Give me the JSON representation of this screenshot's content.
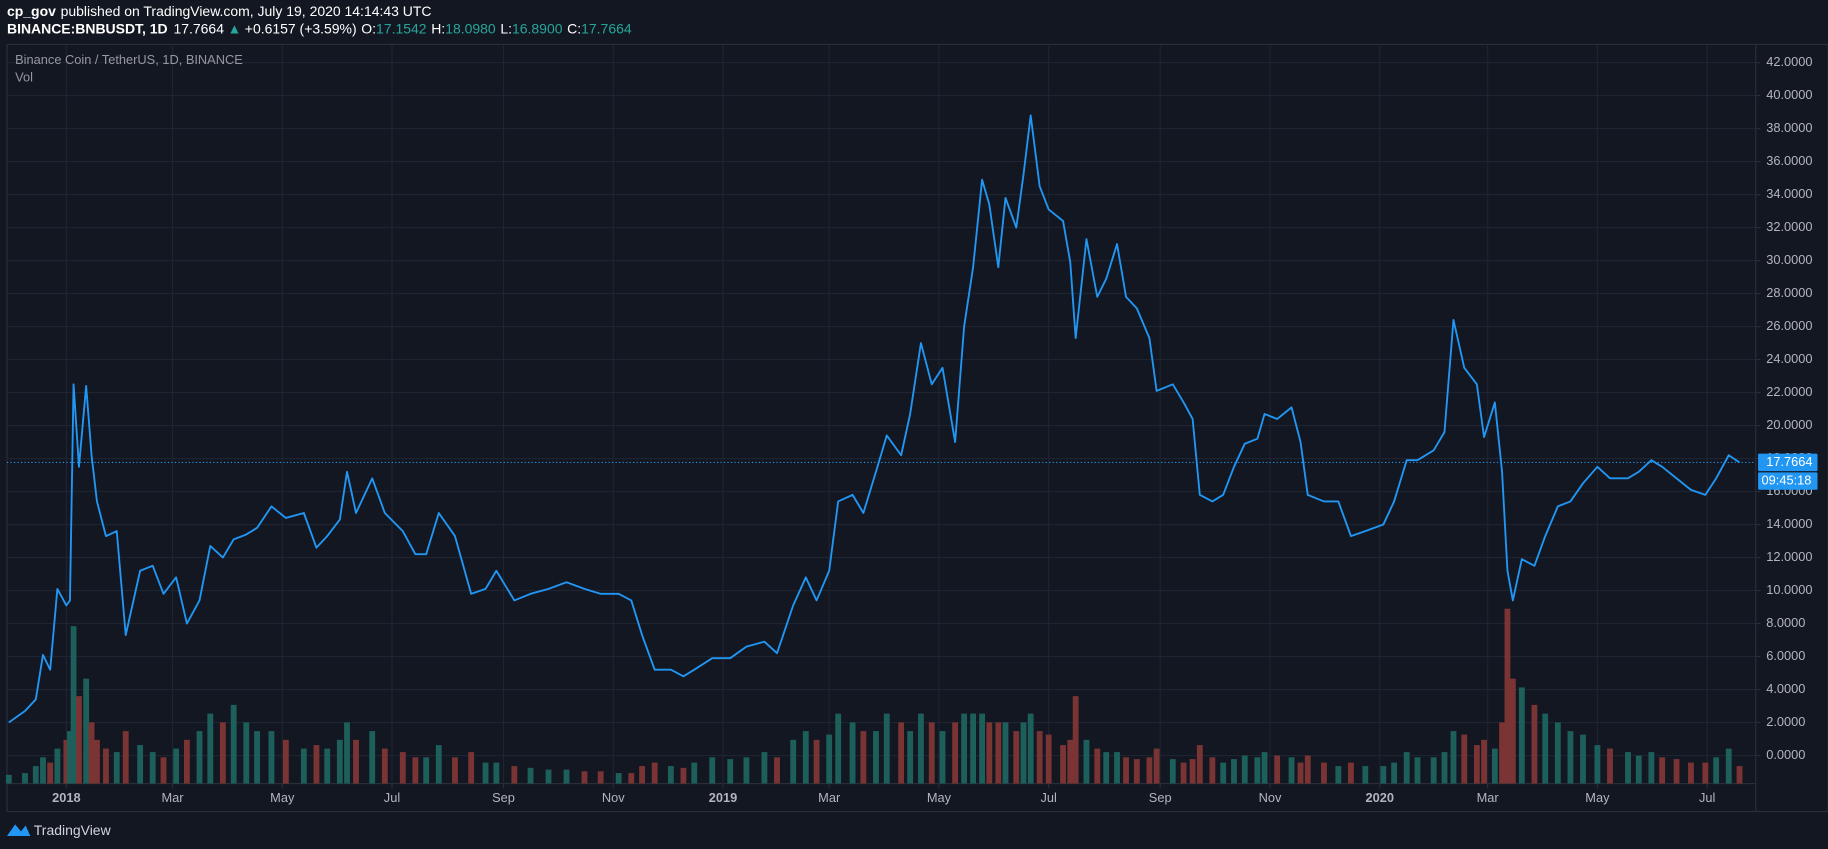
{
  "header": {
    "author": "cp_gov",
    "published": "published on TradingView.com, July 19, 2020 14:14:43 UTC",
    "symbol": "BINANCE:BNBUSDT, 1D",
    "last": "17.7664",
    "arrow": "▲",
    "change": "+0.6157 (+3.59%)",
    "open_label": "O:",
    "open": "17.1542",
    "high_label": "H:",
    "high": "18.0980",
    "low_label": "L:",
    "low": "16.8900",
    "close_label": "C:",
    "close": "17.7664"
  },
  "chart_data": {
    "type": "line",
    "background": "#131722",
    "grid": true,
    "grid_color": "#1f2431",
    "x": [
      "2017-11-30",
      "2017-12-09",
      "2017-12-15",
      "2017-12-19",
      "2017-12-23",
      "2017-12-27",
      "2018-01-01",
      "2018-01-03",
      "2018-01-05",
      "2018-01-08",
      "2018-01-12",
      "2018-01-15",
      "2018-01-18",
      "2018-01-23",
      "2018-01-29",
      "2018-02-03",
      "2018-02-11",
      "2018-02-18",
      "2018-02-24",
      "2018-03-03",
      "2018-03-09",
      "2018-03-16",
      "2018-03-22",
      "2018-03-29",
      "2018-04-04",
      "2018-04-11",
      "2018-04-17",
      "2018-04-25",
      "2018-05-03",
      "2018-05-13",
      "2018-05-20",
      "2018-05-26",
      "2018-06-02",
      "2018-06-06",
      "2018-06-11",
      "2018-06-20",
      "2018-06-27",
      "2018-07-07",
      "2018-07-14",
      "2018-07-20",
      "2018-07-27",
      "2018-08-05",
      "2018-08-14",
      "2018-08-22",
      "2018-08-28",
      "2018-09-07",
      "2018-09-16",
      "2018-09-26",
      "2018-10-06",
      "2018-10-16",
      "2018-10-25",
      "2018-11-04",
      "2018-11-11",
      "2018-11-17",
      "2018-11-24",
      "2018-12-03",
      "2018-12-10",
      "2018-12-16",
      "2018-12-26",
      "2019-01-05",
      "2019-01-14",
      "2019-01-24",
      "2019-01-31",
      "2019-02-09",
      "2019-02-16",
      "2019-02-22",
      "2019-03-01",
      "2019-03-06",
      "2019-03-14",
      "2019-03-20",
      "2019-03-27",
      "2019-04-02",
      "2019-04-10",
      "2019-04-15",
      "2019-04-21",
      "2019-04-27",
      "2019-05-03",
      "2019-05-10",
      "2019-05-15",
      "2019-05-20",
      "2019-05-25",
      "2019-05-29",
      "2019-06-03",
      "2019-06-07",
      "2019-06-13",
      "2019-06-17",
      "2019-06-21",
      "2019-06-26",
      "2019-07-01",
      "2019-07-09",
      "2019-07-13",
      "2019-07-16",
      "2019-07-22",
      "2019-07-28",
      "2019-08-02",
      "2019-08-08",
      "2019-08-13",
      "2019-08-19",
      "2019-08-26",
      "2019-08-30",
      "2019-09-08",
      "2019-09-14",
      "2019-09-19",
      "2019-09-23",
      "2019-09-30",
      "2019-10-06",
      "2019-10-12",
      "2019-10-18",
      "2019-10-25",
      "2019-10-29",
      "2019-11-05",
      "2019-11-13",
      "2019-11-18",
      "2019-11-22",
      "2019-12-01",
      "2019-12-09",
      "2019-12-16",
      "2019-12-24",
      "2020-01-03",
      "2020-01-09",
      "2020-01-16",
      "2020-01-22",
      "2020-01-31",
      "2020-02-06",
      "2020-02-11",
      "2020-02-17",
      "2020-02-24",
      "2020-02-28",
      "2020-03-05",
      "2020-03-09",
      "2020-03-12",
      "2020-03-15",
      "2020-03-20",
      "2020-03-27",
      "2020-04-02",
      "2020-04-09",
      "2020-04-16",
      "2020-04-23",
      "2020-05-01",
      "2020-05-08",
      "2020-05-18",
      "2020-05-24",
      "2020-05-31",
      "2020-06-06",
      "2020-06-14",
      "2020-06-22",
      "2020-06-30",
      "2020-07-06",
      "2020-07-13",
      "2020-07-19"
    ],
    "series": [
      {
        "name": "Binance Coin / TetherUS, 1D, BINANCE",
        "color": "#2196f3",
        "values": [
          2.0,
          2.7,
          3.4,
          6.1,
          5.2,
          10.1,
          9.1,
          9.4,
          22.5,
          17.5,
          22.4,
          18.2,
          15.4,
          13.3,
          13.6,
          7.3,
          11.2,
          11.5,
          9.8,
          10.8,
          8.0,
          9.4,
          12.7,
          12.0,
          13.1,
          13.4,
          13.8,
          15.1,
          14.4,
          14.7,
          12.6,
          13.3,
          14.3,
          17.2,
          14.7,
          16.8,
          14.7,
          13.6,
          12.2,
          12.2,
          14.7,
          13.3,
          9.8,
          10.1,
          11.2,
          9.4,
          9.8,
          10.1,
          10.5,
          10.1,
          9.8,
          9.8,
          9.4,
          7.3,
          5.2,
          5.2,
          4.8,
          5.2,
          5.9,
          5.9,
          6.6,
          6.9,
          6.2,
          9.1,
          10.8,
          9.4,
          11.2,
          15.4,
          15.8,
          14.7,
          17.2,
          19.4,
          18.2,
          20.7,
          25.0,
          22.5,
          23.5,
          19.0,
          26.0,
          29.6,
          34.9,
          33.4,
          29.6,
          33.8,
          32.0,
          35.2,
          38.8,
          34.5,
          33.1,
          32.4,
          29.9,
          25.3,
          31.3,
          27.8,
          28.9,
          31.0,
          27.8,
          27.1,
          25.3,
          22.1,
          22.5,
          21.4,
          20.4,
          15.8,
          15.4,
          15.8,
          17.5,
          18.9,
          19.2,
          20.7,
          20.4,
          21.1,
          19.0,
          15.8,
          15.4,
          15.4,
          13.3,
          13.6,
          14.0,
          15.4,
          17.9,
          17.9,
          18.5,
          19.6,
          26.4,
          23.5,
          22.5,
          19.3,
          21.4,
          17.2,
          11.2,
          9.4,
          11.9,
          11.5,
          13.3,
          15.1,
          15.4,
          16.5,
          17.5,
          16.8,
          16.8,
          17.2,
          17.9,
          17.5,
          16.8,
          16.1,
          15.8,
          16.8,
          18.2,
          17.7664
        ]
      }
    ],
    "volume": {
      "name": "Vol",
      "vlim": [
        0,
        100
      ],
      "up_color": "#1d5f5b",
      "down_color": "#7a3434",
      "values": [
        5,
        6,
        10,
        15,
        12,
        20,
        25,
        30,
        90,
        50,
        60,
        35,
        25,
        20,
        18,
        30,
        22,
        18,
        15,
        20,
        25,
        30,
        40,
        35,
        45,
        35,
        30,
        30,
        25,
        20,
        22,
        20,
        25,
        35,
        25,
        30,
        20,
        18,
        15,
        15,
        22,
        15,
        18,
        12,
        12,
        10,
        9,
        8,
        8,
        7,
        7,
        6,
        6,
        10,
        12,
        10,
        9,
        12,
        15,
        14,
        15,
        18,
        15,
        25,
        30,
        25,
        28,
        40,
        35,
        30,
        30,
        40,
        35,
        30,
        40,
        35,
        30,
        35,
        40,
        40,
        40,
        35,
        35,
        35,
        30,
        35,
        40,
        30,
        28,
        22,
        25,
        50,
        25,
        20,
        18,
        18,
        15,
        14,
        15,
        20,
        14,
        12,
        14,
        22,
        15,
        12,
        14,
        16,
        15,
        18,
        16,
        15,
        12,
        16,
        12,
        10,
        12,
        10,
        10,
        12,
        18,
        15,
        15,
        18,
        30,
        28,
        22,
        25,
        20,
        35,
        100,
        60,
        55,
        45,
        40,
        35,
        30,
        28,
        22,
        20,
        18,
        16,
        18,
        15,
        14,
        12,
        12,
        15,
        20,
        10
      ]
    },
    "xlim": [
      "2017-11-29",
      "2020-07-28"
    ],
    "xticks": [
      {
        "value": "2018-01-01",
        "label": "2018"
      },
      {
        "value": "2018-03-01",
        "label": "Mar"
      },
      {
        "value": "2018-05-01",
        "label": "May"
      },
      {
        "value": "2018-07-01",
        "label": "Jul"
      },
      {
        "value": "2018-09-01",
        "label": "Sep"
      },
      {
        "value": "2018-11-01",
        "label": "Nov"
      },
      {
        "value": "2019-01-01",
        "label": "2019"
      },
      {
        "value": "2019-03-01",
        "label": "Mar"
      },
      {
        "value": "2019-05-01",
        "label": "May"
      },
      {
        "value": "2019-07-01",
        "label": "Jul"
      },
      {
        "value": "2019-09-01",
        "label": "Sep"
      },
      {
        "value": "2019-11-01",
        "label": "Nov"
      },
      {
        "value": "2020-01-01",
        "label": "2020"
      },
      {
        "value": "2020-03-01",
        "label": "Mar"
      },
      {
        "value": "2020-05-01",
        "label": "May"
      },
      {
        "value": "2020-07-01",
        "label": "Jul"
      }
    ],
    "ylim": [
      -1.7,
      43.1
    ],
    "yticks": [
      {
        "value": 0,
        "label": "0.0000"
      },
      {
        "value": 2,
        "label": "2.0000"
      },
      {
        "value": 4,
        "label": "4.0000"
      },
      {
        "value": 6,
        "label": "6.0000"
      },
      {
        "value": 8,
        "label": "8.0000"
      },
      {
        "value": 10,
        "label": "10.0000"
      },
      {
        "value": 12,
        "label": "12.0000"
      },
      {
        "value": 14,
        "label": "14.0000"
      },
      {
        "value": 16,
        "label": "16.0000"
      },
      {
        "value": 18,
        "label": "18.0000"
      },
      {
        "value": 20,
        "label": "20.0000"
      },
      {
        "value": 22,
        "label": "22.0000"
      },
      {
        "value": 24,
        "label": "24.0000"
      },
      {
        "value": 26,
        "label": "26.0000"
      },
      {
        "value": 28,
        "label": "28.0000"
      },
      {
        "value": 30,
        "label": "30.0000"
      },
      {
        "value": 32,
        "label": "32.0000"
      },
      {
        "value": 34,
        "label": "34.0000"
      },
      {
        "value": 36,
        "label": "36.0000"
      },
      {
        "value": 38,
        "label": "38.0000"
      },
      {
        "value": 40,
        "label": "40.0000"
      },
      {
        "value": 42,
        "label": "42.0000"
      }
    ],
    "countdown": "09:45:18"
  },
  "footer": {
    "brand": "TradingView"
  }
}
